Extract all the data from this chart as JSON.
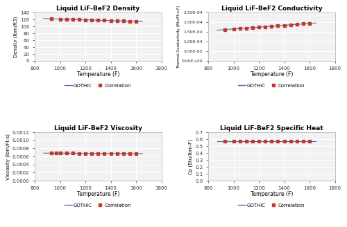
{
  "titles": [
    "Liquid LiF-BeF2 Density",
    "Liquid LiF-BeF2 Conductivity",
    "Liquid LiF-BeF2 Viscosity",
    "Liquid LiF-BeF2 Specific Heat"
  ],
  "xlabels": [
    "Temperature (F)",
    "Temperature (F)",
    "Temperature (F)",
    "Temperature (F)"
  ],
  "ylabels": [
    "Density (lbm/ft3)",
    "Thermal Conductivity (Btu/Ft-s-F)",
    "Viscosity (lbm/Ft-s)",
    "Cp (Btu/lbm-F)"
  ],
  "xlim": [
    800,
    1800
  ],
  "xticks": [
    800,
    1000,
    1200,
    1400,
    1600,
    1800
  ],
  "density_x": [
    930,
    1000,
    1050,
    1100,
    1150,
    1200,
    1250,
    1300,
    1350,
    1400,
    1450,
    1500,
    1550,
    1600
  ],
  "density_ylim": [
    0,
    140
  ],
  "density_yticks": [
    0,
    20,
    40,
    60,
    80,
    100,
    120,
    140
  ],
  "cond_x": [
    930,
    1000,
    1050,
    1100,
    1150,
    1200,
    1250,
    1300,
    1350,
    1400,
    1450,
    1500,
    1550,
    1600
  ],
  "cond_ylim": [
    0,
    0.00025
  ],
  "cond_yticks": [
    0.0,
    5e-05,
    0.0001,
    0.00015,
    0.0002,
    0.00025
  ],
  "cond_yticklabels": [
    "0.00E+00",
    "5.00E-05",
    "1.00E-04",
    "1.50E-04",
    "2.00E-04",
    "2.50E-04"
  ],
  "visc_x": [
    930,
    970,
    1000,
    1050,
    1100,
    1150,
    1200,
    1250,
    1300,
    1350,
    1400,
    1450,
    1500,
    1550,
    1600
  ],
  "visc_ylim": [
    0,
    0.0012
  ],
  "visc_yticks": [
    0,
    0.0002,
    0.0004,
    0.0006,
    0.0008,
    0.001,
    0.0012
  ],
  "sh_x": [
    930,
    1000,
    1050,
    1100,
    1150,
    1200,
    1250,
    1300,
    1350,
    1400,
    1450,
    1500,
    1550,
    1600
  ],
  "sh_ylim": [
    0,
    0.7
  ],
  "sh_yticks": [
    0,
    0.1,
    0.2,
    0.3,
    0.4,
    0.5,
    0.6,
    0.7
  ],
  "line_color": "#4472c4",
  "marker_color": "#c0392b",
  "legend_line_label": "GOTHIC",
  "legend_marker_label": "Correlation",
  "bg_color": "#ffffff",
  "plot_bg": "#f2f2f2",
  "grid_color": "#ffffff",
  "spine_color": "#aaaaaa"
}
